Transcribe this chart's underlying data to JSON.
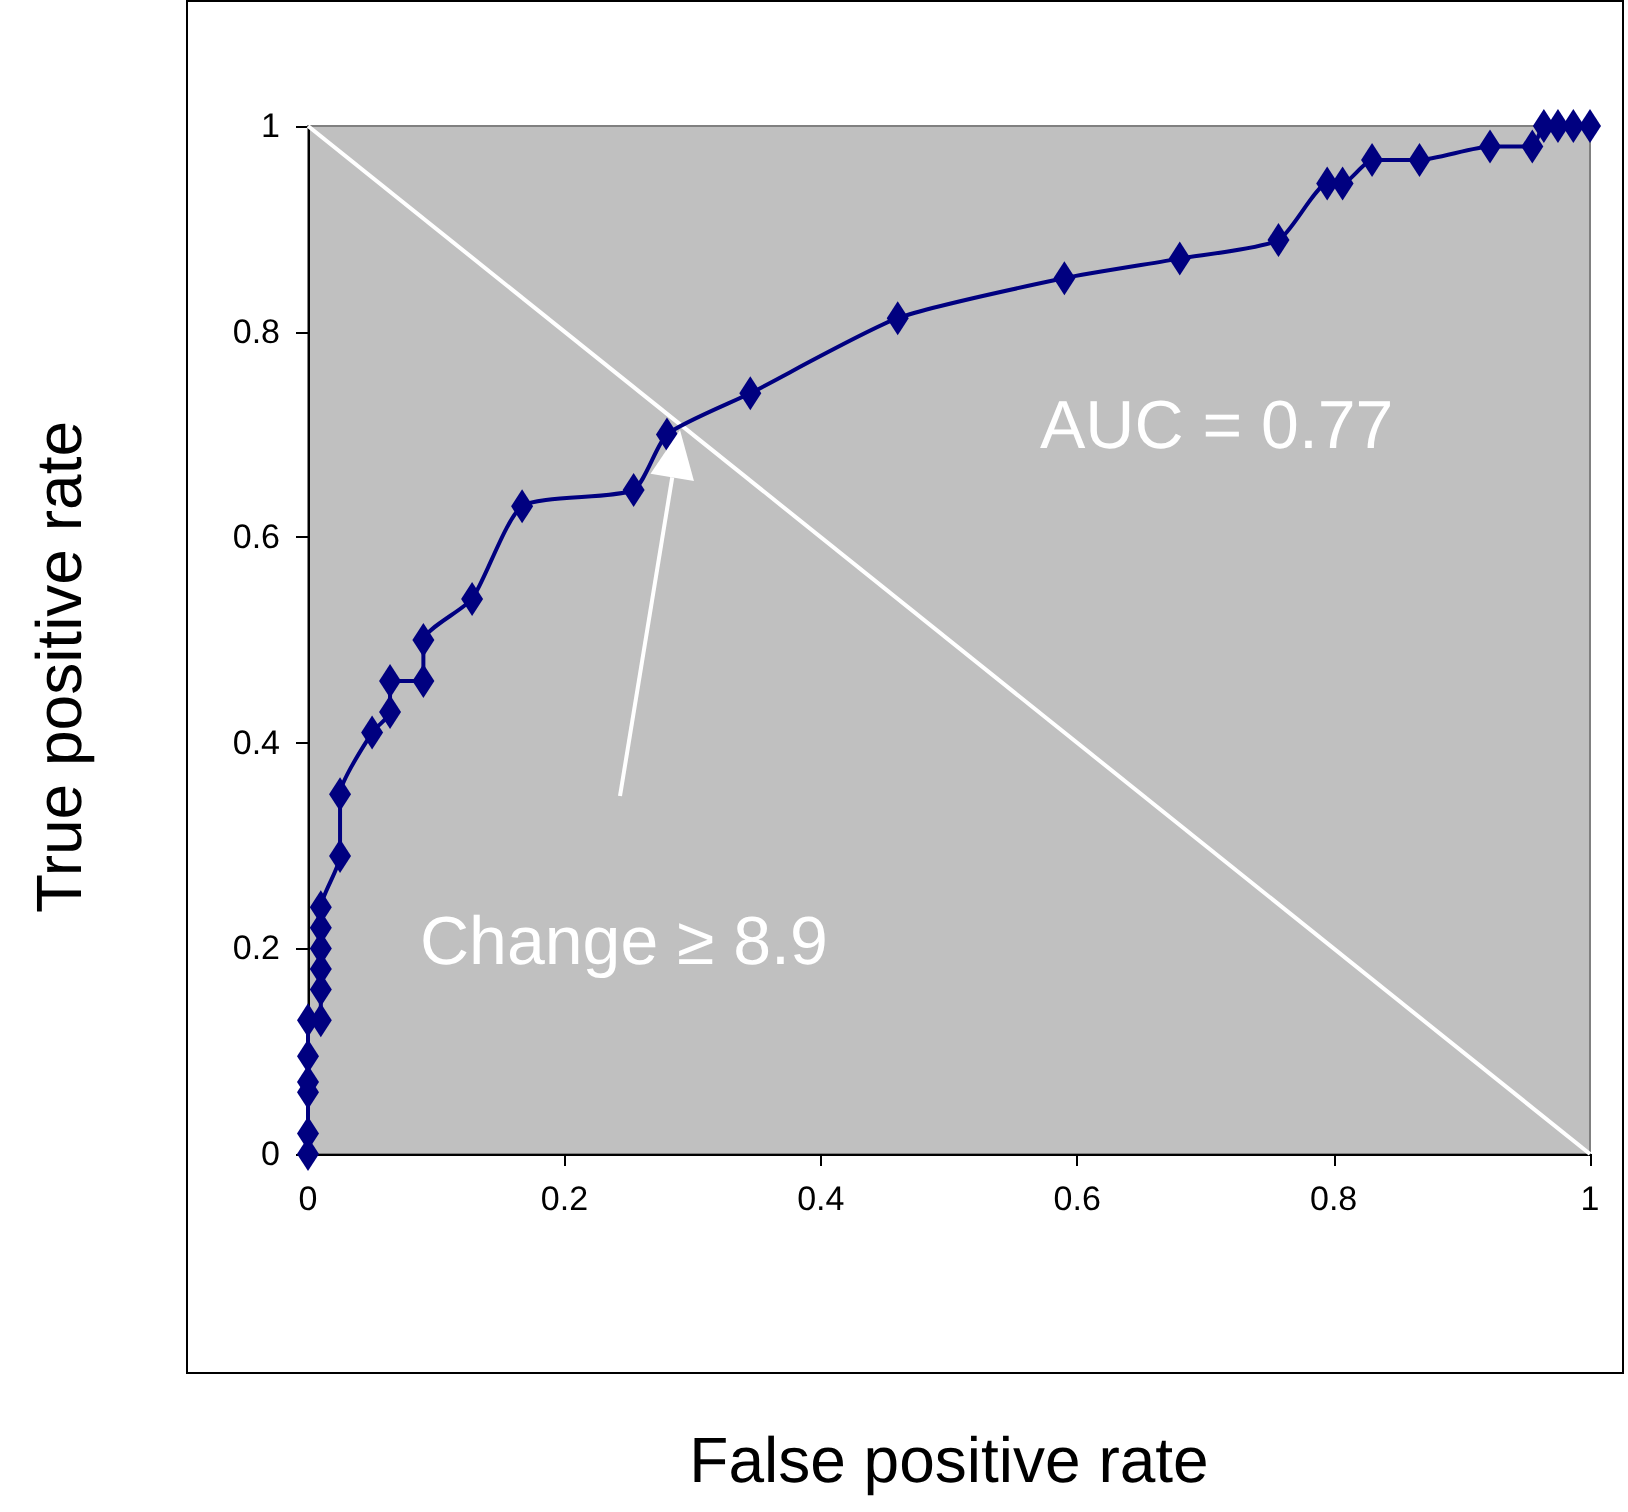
{
  "chart_data": {
    "type": "line",
    "xlabel": "False positive rate",
    "ylabel": "True positive rate",
    "xlim": [
      0,
      1
    ],
    "ylim": [
      0,
      1
    ],
    "xticks": [
      0,
      0.2,
      0.4,
      0.6,
      0.8,
      1
    ],
    "yticks": [
      0,
      0.2,
      0.4,
      0.6,
      0.8,
      1
    ],
    "grid": false,
    "series": [
      {
        "color": "#000080",
        "marker": "diamond",
        "x": [
          0,
          0,
          0,
          0,
          0,
          0,
          0.01,
          0.01,
          0.01,
          0.01,
          0.01,
          0.01,
          0.025,
          0.025,
          0.05,
          0.064,
          0.064,
          0.09,
          0.09,
          0.128,
          0.167,
          0.254,
          0.28,
          0.345,
          0.46,
          0.59,
          0.68,
          0.757,
          0.795,
          0.807,
          0.83,
          0.867,
          0.922,
          0.955,
          0.964,
          0.975,
          0.987,
          1
        ],
        "values": [
          0,
          0.02,
          0.06,
          0.07,
          0.095,
          0.13,
          0.13,
          0.16,
          0.18,
          0.2,
          0.22,
          0.24,
          0.29,
          0.35,
          0.41,
          0.43,
          0.46,
          0.46,
          0.5,
          0.54,
          0.63,
          0.646,
          0.7,
          0.74,
          0.813,
          0.852,
          0.871,
          0.889,
          0.944,
          0.944,
          0.967,
          0.967,
          0.98,
          0.98,
          1,
          1,
          1,
          1
        ]
      },
      {
        "color": "#ffffff",
        "marker": "none",
        "x": [
          0,
          1
        ],
        "values": [
          1,
          0
        ]
      }
    ],
    "annotations": [
      "AUC = 0.77",
      "Change ≥ 8.9"
    ]
  }
}
